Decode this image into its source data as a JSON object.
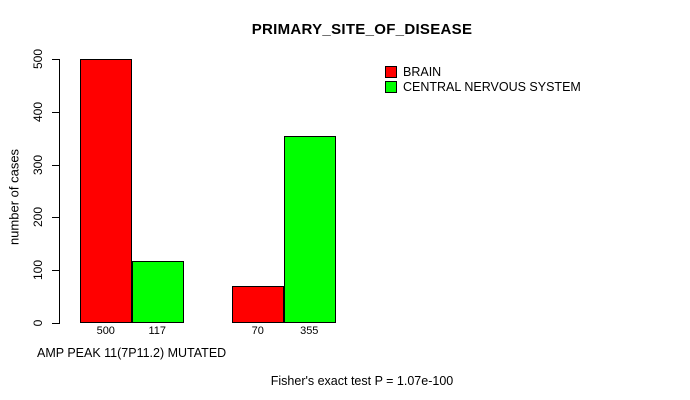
{
  "title": "PRIMARY_SITE_OF_DISEASE",
  "ylabel": "number of cases",
  "footer_left": "AMP PEAK 11(7P11.2) MUTATED",
  "footer_stat": "Fisher's exact test P = 1.07e-100",
  "legend": [
    {
      "label": "BRAIN",
      "color": "#ff0000"
    },
    {
      "label": "CENTRAL NERVOUS SYSTEM",
      "color": "#00ff00"
    }
  ],
  "chart_data": {
    "type": "bar",
    "title": "PRIMARY_SITE_OF_DISEASE",
    "xlabel": "AMP PEAK 11(7P11.2) MUTATED",
    "ylabel": "number of cases",
    "ylim": [
      0,
      500
    ],
    "yticks": [
      0,
      100,
      200,
      300,
      400,
      500
    ],
    "grid": false,
    "legend_position": "top-right",
    "categories": [
      "",
      ""
    ],
    "series": [
      {
        "name": "BRAIN",
        "color": "#ff0000",
        "values": [
          500,
          70
        ]
      },
      {
        "name": "CENTRAL NERVOUS SYSTEM",
        "color": "#00ff00",
        "values": [
          117,
          355
        ]
      }
    ],
    "bar_value_labels": [
      "500",
      "117",
      "70",
      "355"
    ],
    "annotation": "Fisher's exact test P = 1.07e-100"
  }
}
